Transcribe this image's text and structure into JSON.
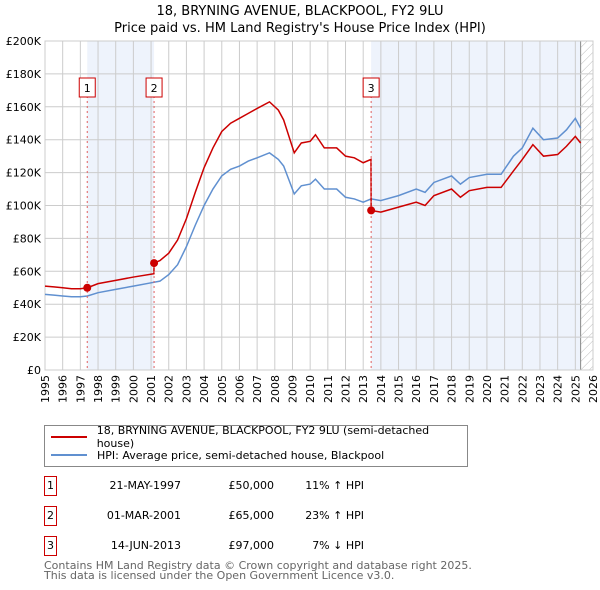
{
  "title_line1": "18, BRYNING AVENUE, BLACKPOOL, FY2 9LU",
  "title_line2": "Price paid vs. HM Land Registry's House Price Index (HPI)",
  "colors": {
    "property": "#cc0000",
    "hpi": "#6090d0",
    "shade": "#eef3fc",
    "grid": "#cccccc"
  },
  "chart_data": {
    "type": "line",
    "xlim": [
      1995,
      2026
    ],
    "ylim": [
      0,
      200000
    ],
    "x_ticks": [
      "1995",
      "1996",
      "1997",
      "1998",
      "1999",
      "2000",
      "2001",
      "2002",
      "2003",
      "2004",
      "2005",
      "2006",
      "2007",
      "2008",
      "2009",
      "2010",
      "2011",
      "2012",
      "2013",
      "2014",
      "2015",
      "2016",
      "2017",
      "2018",
      "2019",
      "2020",
      "2021",
      "2022",
      "2023",
      "2024",
      "2025",
      "2026"
    ],
    "y_ticks": [
      {
        "v": 0,
        "label": "£0"
      },
      {
        "v": 20000,
        "label": "£20K"
      },
      {
        "v": 40000,
        "label": "£40K"
      },
      {
        "v": 60000,
        "label": "£60K"
      },
      {
        "v": 80000,
        "label": "£80K"
      },
      {
        "v": 100000,
        "label": "£100K"
      },
      {
        "v": 120000,
        "label": "£120K"
      },
      {
        "v": 140000,
        "label": "£140K"
      },
      {
        "v": 160000,
        "label": "£160K"
      },
      {
        "v": 180000,
        "label": "£180K"
      },
      {
        "v": 200000,
        "label": "£200K"
      }
    ],
    "grid": true,
    "series": [
      {
        "name": "18, BRYNING AVENUE, BLACKPOOL, FY2 9LU (semi-detached house)",
        "color": "#cc0000",
        "points": [
          [
            1995,
            51
          ],
          [
            1995.5,
            50.5
          ],
          [
            1996,
            50
          ],
          [
            1996.5,
            49.4
          ],
          [
            1997,
            49.4
          ],
          [
            1997.4,
            50
          ],
          [
            1998,
            52.5
          ],
          [
            1999,
            54.5
          ],
          [
            2000,
            56.5
          ],
          [
            2001.16,
            58.5
          ],
          [
            2001.17,
            65
          ],
          [
            2001.5,
            66.5
          ],
          [
            2002,
            71
          ],
          [
            2002.5,
            79
          ],
          [
            2003,
            92
          ],
          [
            2003.5,
            108
          ],
          [
            2004,
            123
          ],
          [
            2004.5,
            135
          ],
          [
            2005,
            145
          ],
          [
            2005.5,
            150
          ],
          [
            2006,
            153
          ],
          [
            2006.5,
            156
          ],
          [
            2007,
            159
          ],
          [
            2007.7,
            163
          ],
          [
            2008.2,
            158
          ],
          [
            2008.5,
            152
          ],
          [
            2009.1,
            132
          ],
          [
            2009.5,
            138
          ],
          [
            2010,
            139
          ],
          [
            2010.3,
            143
          ],
          [
            2010.8,
            135
          ],
          [
            2011.5,
            135
          ],
          [
            2012,
            130
          ],
          [
            2012.5,
            129
          ],
          [
            2013,
            126
          ],
          [
            2013.44,
            128
          ],
          [
            2013.45,
            97
          ],
          [
            2014,
            96
          ],
          [
            2015,
            99
          ],
          [
            2016,
            102
          ],
          [
            2016.5,
            100
          ],
          [
            2017,
            106
          ],
          [
            2018,
            110
          ],
          [
            2018.5,
            105
          ],
          [
            2019,
            109
          ],
          [
            2020,
            111
          ],
          [
            2020.8,
            111
          ],
          [
            2021.5,
            121
          ],
          [
            2022,
            128
          ],
          [
            2022.6,
            137
          ],
          [
            2023.2,
            130
          ],
          [
            2024,
            131
          ],
          [
            2024.5,
            136
          ],
          [
            2025,
            142
          ],
          [
            2025.3,
            138
          ]
        ]
      },
      {
        "name": "HPI: Average price, semi-detached house, Blackpool",
        "color": "#6090d0",
        "points": [
          [
            1995,
            46
          ],
          [
            1995.5,
            45.5
          ],
          [
            1996,
            45
          ],
          [
            1996.5,
            44.5
          ],
          [
            1997,
            44.5
          ],
          [
            1997.4,
            45
          ],
          [
            1998,
            47
          ],
          [
            1999,
            49
          ],
          [
            2000,
            51
          ],
          [
            2001,
            53
          ],
          [
            2001.5,
            54
          ],
          [
            2002,
            58
          ],
          [
            2002.5,
            64
          ],
          [
            2003,
            75
          ],
          [
            2003.5,
            88
          ],
          [
            2004,
            100
          ],
          [
            2004.5,
            110
          ],
          [
            2005,
            118
          ],
          [
            2005.5,
            122
          ],
          [
            2006,
            124
          ],
          [
            2006.5,
            127
          ],
          [
            2007,
            129
          ],
          [
            2007.7,
            132
          ],
          [
            2008.2,
            128
          ],
          [
            2008.5,
            124
          ],
          [
            2009.1,
            107
          ],
          [
            2009.5,
            112
          ],
          [
            2010,
            113
          ],
          [
            2010.3,
            116
          ],
          [
            2010.8,
            110
          ],
          [
            2011.5,
            110
          ],
          [
            2012,
            105
          ],
          [
            2012.5,
            104
          ],
          [
            2013,
            102
          ],
          [
            2013.45,
            104
          ],
          [
            2014,
            103
          ],
          [
            2015,
            106
          ],
          [
            2016,
            110
          ],
          [
            2016.5,
            108
          ],
          [
            2017,
            114
          ],
          [
            2018,
            118
          ],
          [
            2018.5,
            113
          ],
          [
            2019,
            117
          ],
          [
            2020,
            119
          ],
          [
            2020.8,
            119
          ],
          [
            2021.5,
            130
          ],
          [
            2022,
            135
          ],
          [
            2022.6,
            147
          ],
          [
            2023.2,
            140
          ],
          [
            2024,
            141
          ],
          [
            2024.5,
            146
          ],
          [
            2025,
            153
          ],
          [
            2025.3,
            147
          ]
        ]
      }
    ],
    "y_units": "thousands GBP in points",
    "sales": [
      {
        "n": "1",
        "x": 1997.39,
        "price": 50000
      },
      {
        "n": "2",
        "x": 2001.17,
        "price": 65000
      },
      {
        "n": "3",
        "x": 2013.45,
        "price": 97000
      }
    ],
    "shaded_ranges": [
      [
        1997.39,
        2001.17
      ],
      [
        2013.45,
        2025.3
      ]
    ],
    "hatched_from": 2025.3,
    "legend_position": "below"
  },
  "legend": {
    "property": "18, BRYNING AVENUE, BLACKPOOL, FY2 9LU (semi-detached house)",
    "hpi": "HPI: Average price, semi-detached house, Blackpool"
  },
  "transactions": [
    {
      "n": "1",
      "date": "21-MAY-1997",
      "price": "£50,000",
      "hpi": "11% ↑ HPI"
    },
    {
      "n": "2",
      "date": "01-MAR-2001",
      "price": "£65,000",
      "hpi": "23% ↑ HPI"
    },
    {
      "n": "3",
      "date": "14-JUN-2013",
      "price": "£97,000",
      "hpi": "7% ↓ HPI"
    }
  ],
  "footer": {
    "line1": "Contains HM Land Registry data © Crown copyright and database right 2025.",
    "line2": "This data is licensed under the Open Government Licence v3.0."
  }
}
